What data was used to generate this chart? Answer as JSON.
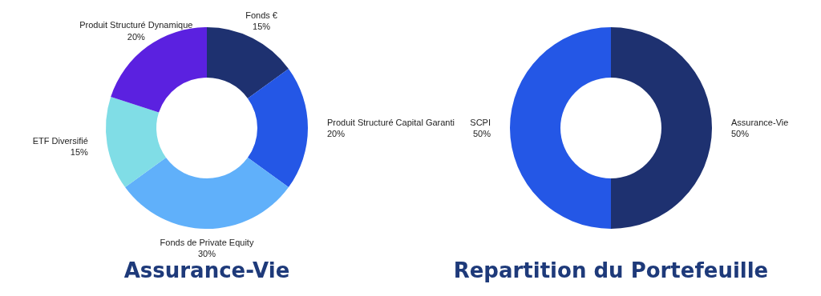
{
  "chart_data": [
    {
      "type": "donut",
      "title": "Assurance-Vie",
      "categories": [
        "Fonds €",
        "Produit Structuré Capital Garanti",
        "Fonds de Private Equity",
        "ETF Diversifié",
        "Produit Structuré Dynamique"
      ],
      "values": [
        15,
        20,
        30,
        15,
        20
      ],
      "colors": [
        "#1e3170",
        "#2457e6",
        "#60b0fa",
        "#80dde6",
        "#5b21e0"
      ],
      "value_labels": [
        "15%",
        "20%",
        "30%",
        "15%",
        "20%"
      ]
    },
    {
      "type": "donut",
      "title": "Repartition du Portefeuille",
      "categories": [
        "Assurance-Vie",
        "SCPI"
      ],
      "values": [
        50,
        50
      ],
      "colors": [
        "#1e3170",
        "#2457e6"
      ],
      "value_labels": [
        "50%",
        "50%"
      ]
    }
  ]
}
